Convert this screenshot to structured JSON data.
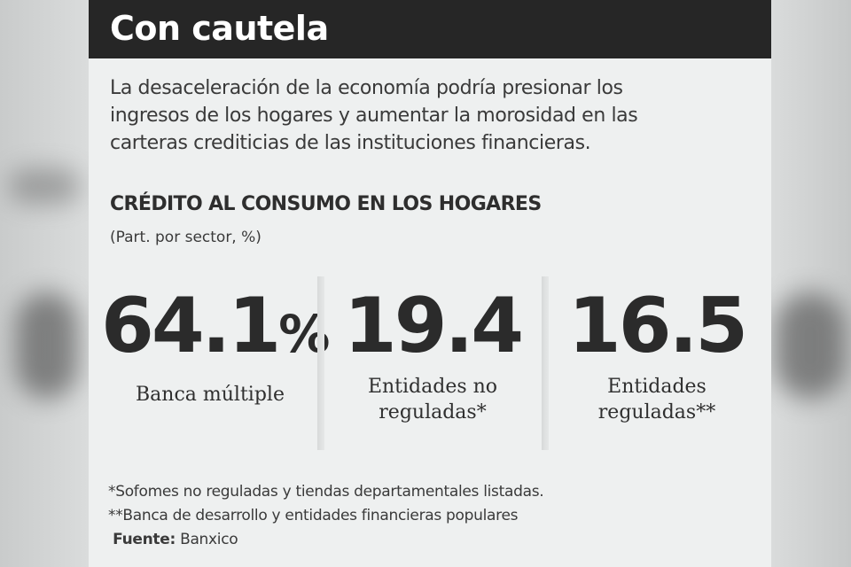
{
  "header": {
    "title": "Con cautela"
  },
  "intro": {
    "lines": [
      "La desaceleración de la economía podría presionar los",
      "ingresos de los hogares y aumentar la morosidad en las",
      "carteras crediticias de las instituciones financieras."
    ]
  },
  "chart_data": {
    "type": "table",
    "title": "CRÉDITO AL CONSUMO EN LOS HOGARES",
    "subtitle": "(Part. por sector, %)",
    "items": [
      {
        "value": "64.1",
        "unit": "%",
        "label_lines": [
          "Banca múltiple"
        ]
      },
      {
        "value": "19.4",
        "unit": "",
        "label_lines": [
          "Entidades no",
          "reguladas*"
        ]
      },
      {
        "value": "16.5",
        "unit": "",
        "label_lines": [
          "Entidades",
          "reguladas**"
        ]
      }
    ]
  },
  "footnotes": {
    "note1": "*Sofomes no reguladas y tiendas departamentales listadas.",
    "note2": "**Banca de desarrollo y entidades financieras populares",
    "source_label": "Fuente:",
    "source_value": "Banxico"
  }
}
